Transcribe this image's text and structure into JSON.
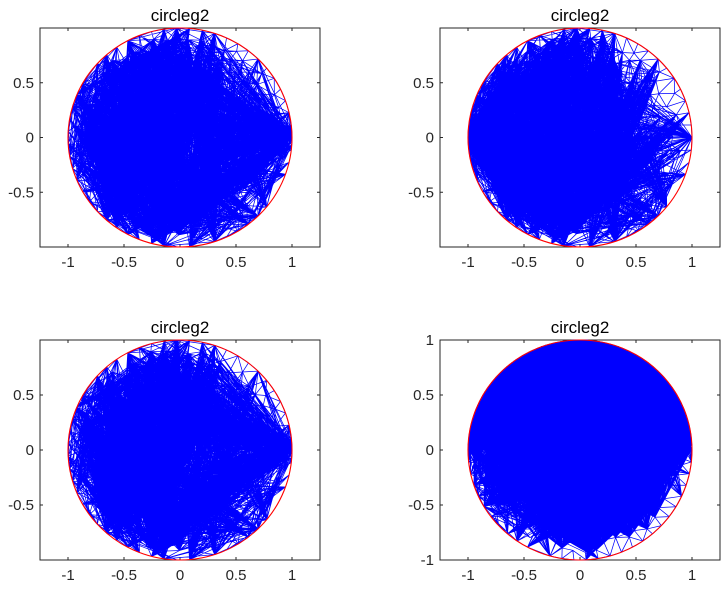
{
  "chart_data": [
    {
      "type": "mesh",
      "title": "circleg2",
      "geometry": "unit-circle",
      "radius": 1,
      "center": [
        0,
        0
      ],
      "refinement": "local refinement near point (1, 0)",
      "refine_point": [
        1,
        0
      ],
      "mesh_color": "#0000ff",
      "boundary_color": "#ff0000",
      "xlim": [
        -1.25,
        1.25
      ],
      "ylim": [
        -1,
        1
      ],
      "xticks": [
        -1,
        -0.5,
        0,
        0.5,
        1
      ],
      "xtick_labels": [
        "-1",
        "-0.5",
        "0",
        "0.5",
        "1"
      ],
      "yticks": [
        -0.5,
        0,
        0.5
      ],
      "ytick_labels": [
        "-0.5",
        "0",
        "0.5"
      ]
    },
    {
      "type": "mesh",
      "title": "circleg2",
      "geometry": "unit-circle",
      "radius": 1,
      "center": [
        0,
        0
      ],
      "refinement": "local refinement near point (-1, 0)",
      "refine_point": [
        -1,
        0
      ],
      "mesh_color": "#0000ff",
      "boundary_color": "#ff0000",
      "xlim": [
        -1.25,
        1.25
      ],
      "ylim": [
        -1,
        1
      ],
      "xticks": [
        -1,
        -0.5,
        0,
        0.5,
        1
      ],
      "xtick_labels": [
        "-1",
        "-0.5",
        "0",
        "0.5",
        "1"
      ],
      "yticks": [
        -0.5,
        0,
        0.5
      ],
      "ytick_labels": [
        "-0.5",
        "0",
        "0.5"
      ]
    },
    {
      "type": "mesh",
      "title": "circleg2",
      "geometry": "unit-circle",
      "radius": 1,
      "center": [
        0,
        0
      ],
      "refinement": "local refinement near point (1, 0)",
      "refine_point": [
        1,
        0
      ],
      "mesh_color": "#0000ff",
      "boundary_color": "#ff0000",
      "xlim": [
        -1.25,
        1.25
      ],
      "ylim": [
        -1,
        1
      ],
      "xticks": [
        -1,
        -0.5,
        0,
        0.5,
        1
      ],
      "xtick_labels": [
        "-1",
        "-0.5",
        "0",
        "0.5",
        "1"
      ],
      "yticks": [
        -0.5,
        0,
        0.5
      ],
      "ytick_labels": [
        "-0.5",
        "0",
        "0.5"
      ]
    },
    {
      "type": "mesh",
      "title": "circleg2",
      "geometry": "unit-circle",
      "radius": 1,
      "center": [
        0,
        0
      ],
      "refinement": "boundary-layer refinement along upper arc (y > 0)",
      "mesh_color": "#0000ff",
      "boundary_color": "#ff0000",
      "xlim": [
        -1.25,
        1.25
      ],
      "ylim": [
        -1,
        1
      ],
      "xticks": [
        -1,
        -0.5,
        0,
        0.5,
        1
      ],
      "xtick_labels": [
        "-1",
        "-0.5",
        "0",
        "0.5",
        "1"
      ],
      "yticks": [
        -1,
        -0.5,
        0,
        0.5,
        1
      ],
      "ytick_labels": [
        "-1",
        "-0.5",
        "0",
        "0.5",
        "1"
      ]
    }
  ]
}
